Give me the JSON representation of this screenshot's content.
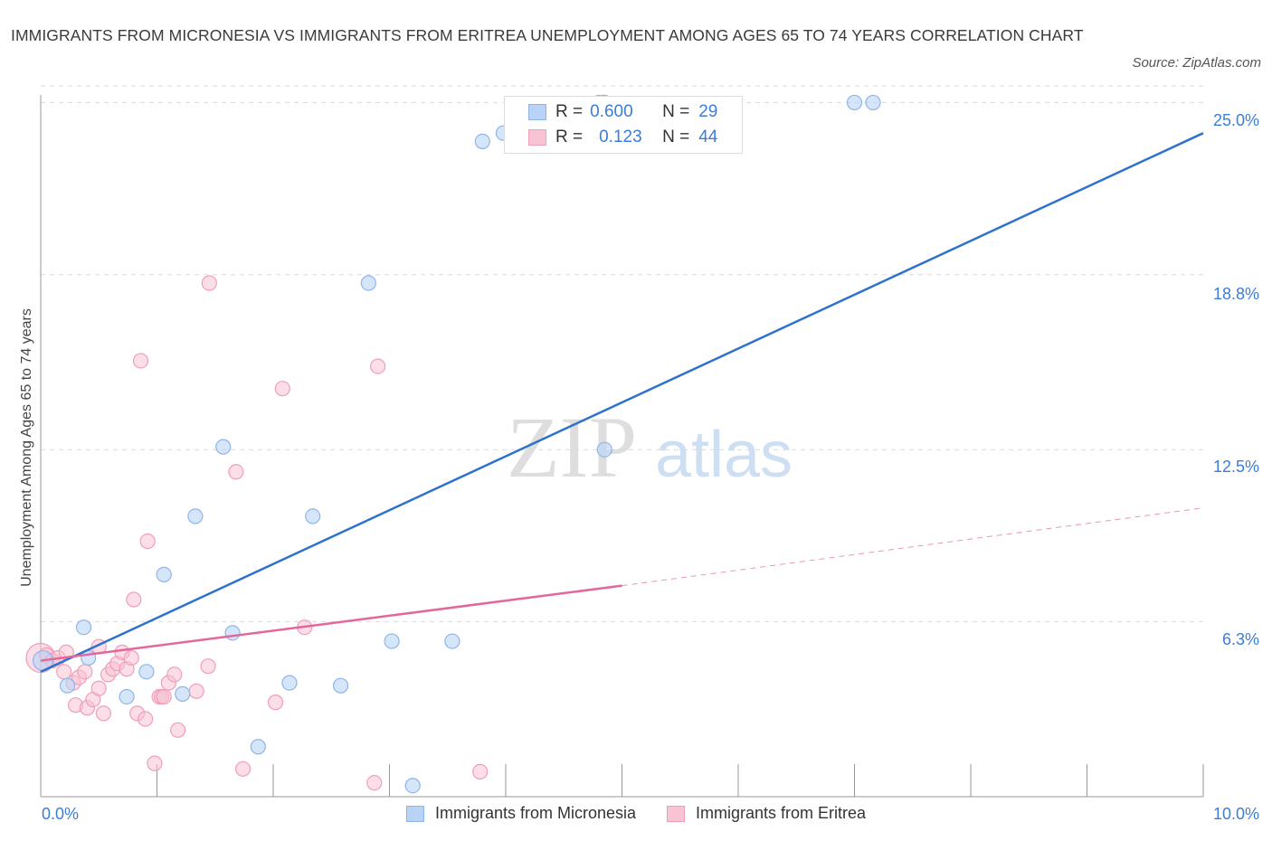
{
  "title": "IMMIGRANTS FROM MICRONESIA VS IMMIGRANTS FROM ERITREA UNEMPLOYMENT AMONG AGES 65 TO 74 YEARS CORRELATION CHART",
  "source": "Source: ZipAtlas.com",
  "watermark": {
    "zip": "ZIP",
    "atlas": "atlas"
  },
  "legend_top": [
    {
      "r_label": "R =",
      "r_value": "0.600",
      "n_label": "N =",
      "n_value": "29"
    },
    {
      "r_label": "R =",
      "r_value": "0.123",
      "n_label": "N =",
      "n_value": "44"
    }
  ],
  "legend_bottom": [
    "Immigrants from Micronesia",
    "Immigrants from Eritrea"
  ],
  "x_tick_labels": {
    "min": "0.0%",
    "max": "10.0%"
  },
  "y_tick_labels": [
    "6.3%",
    "12.5%",
    "18.8%",
    "25.0%"
  ],
  "colors": {
    "micronesia_fill": "#b9d3f6",
    "micronesia_stroke": "#8fb5e8",
    "micronesia_line": "#2f72cc",
    "eritrea_fill": "#f8c3d3",
    "eritrea_stroke": "#ef9fb8",
    "eritrea_line": "#e3679a",
    "tick_text": "#3b7dd8",
    "grid": "#d9d9d9"
  },
  "chart_data": {
    "type": "scatter",
    "title": "IMMIGRANTS FROM MICRONESIA VS IMMIGRANTS FROM ERITREA UNEMPLOYMENT AMONG AGES 65 TO 74 YEARS CORRELATION CHART",
    "xlabel": "",
    "ylabel": "Unemployment Among Ages 65 to 74 years",
    "xlim": [
      0,
      10
    ],
    "ylim": [
      0,
      25.6
    ],
    "x_ticks": [
      0,
      10
    ],
    "y_ticks": [
      6.3,
      12.5,
      18.8,
      25.0
    ],
    "grid": true,
    "legend_position": "bottom",
    "series": [
      {
        "name": "Immigrants from Micronesia",
        "r": 0.6,
        "n": 29,
        "trend": {
          "x": [
            0,
            10
          ],
          "y": [
            4.5,
            23.9
          ],
          "dashed_beyond": null
        },
        "points": [
          {
            "x": 0.02,
            "y": 4.9
          },
          {
            "x": 0.23,
            "y": 4.0
          },
          {
            "x": 0.37,
            "y": 6.1
          },
          {
            "x": 0.41,
            "y": 5.0
          },
          {
            "x": 0.74,
            "y": 3.6
          },
          {
            "x": 0.91,
            "y": 4.5
          },
          {
            "x": 1.06,
            "y": 8.0
          },
          {
            "x": 1.22,
            "y": 3.7
          },
          {
            "x": 1.33,
            "y": 10.1
          },
          {
            "x": 1.57,
            "y": 12.6
          },
          {
            "x": 1.65,
            "y": 5.9
          },
          {
            "x": 1.87,
            "y": 1.8
          },
          {
            "x": 2.14,
            "y": 4.1
          },
          {
            "x": 2.34,
            "y": 10.1
          },
          {
            "x": 2.58,
            "y": 4.0
          },
          {
            "x": 2.82,
            "y": 18.5
          },
          {
            "x": 3.02,
            "y": 5.6
          },
          {
            "x": 3.2,
            "y": 0.4
          },
          {
            "x": 3.54,
            "y": 5.6
          },
          {
            "x": 3.8,
            "y": 23.6
          },
          {
            "x": 3.98,
            "y": 23.9
          },
          {
            "x": 4.85,
            "y": 12.5
          },
          {
            "x": 4.84,
            "y": 25.0
          },
          {
            "x": 4.85,
            "y": 25.0
          },
          {
            "x": 4.8,
            "y": 25.0
          },
          {
            "x": 4.84,
            "y": 25.0
          },
          {
            "x": 4.85,
            "y": 25.0
          },
          {
            "x": 7.0,
            "y": 25.0
          },
          {
            "x": 7.16,
            "y": 25.0
          }
        ]
      },
      {
        "name": "Immigrants from Eritrea",
        "r": 0.123,
        "n": 44,
        "trend": {
          "x": [
            0,
            5.0
          ],
          "y": [
            4.9,
            7.6
          ],
          "dashed_to": [
            10,
            10.4
          ]
        },
        "points": [
          {
            "x": 0.0,
            "y": 5.0
          },
          {
            "x": 0.05,
            "y": 5.1
          },
          {
            "x": 0.1,
            "y": 4.9
          },
          {
            "x": 0.15,
            "y": 5.0
          },
          {
            "x": 0.2,
            "y": 4.5
          },
          {
            "x": 0.22,
            "y": 5.2
          },
          {
            "x": 0.28,
            "y": 4.1
          },
          {
            "x": 0.3,
            "y": 3.3
          },
          {
            "x": 0.33,
            "y": 4.3
          },
          {
            "x": 0.38,
            "y": 4.5
          },
          {
            "x": 0.4,
            "y": 3.2
          },
          {
            "x": 0.45,
            "y": 3.5
          },
          {
            "x": 0.5,
            "y": 3.9
          },
          {
            "x": 0.5,
            "y": 5.4
          },
          {
            "x": 0.54,
            "y": 3.0
          },
          {
            "x": 0.58,
            "y": 4.4
          },
          {
            "x": 0.62,
            "y": 4.6
          },
          {
            "x": 0.66,
            "y": 4.8
          },
          {
            "x": 0.7,
            "y": 5.2
          },
          {
            "x": 0.74,
            "y": 4.6
          },
          {
            "x": 0.78,
            "y": 5.0
          },
          {
            "x": 0.8,
            "y": 7.1
          },
          {
            "x": 0.83,
            "y": 3.0
          },
          {
            "x": 0.86,
            "y": 15.7
          },
          {
            "x": 0.9,
            "y": 2.8
          },
          {
            "x": 0.92,
            "y": 9.2
          },
          {
            "x": 0.98,
            "y": 1.2
          },
          {
            "x": 1.02,
            "y": 3.6
          },
          {
            "x": 1.04,
            "y": 3.6
          },
          {
            "x": 1.06,
            "y": 3.6
          },
          {
            "x": 1.1,
            "y": 4.1
          },
          {
            "x": 1.15,
            "y": 4.4
          },
          {
            "x": 1.18,
            "y": 2.4
          },
          {
            "x": 1.44,
            "y": 4.7
          },
          {
            "x": 1.45,
            "y": 18.5
          },
          {
            "x": 1.68,
            "y": 11.7
          },
          {
            "x": 1.74,
            "y": 1.0
          },
          {
            "x": 2.02,
            "y": 3.4
          },
          {
            "x": 2.08,
            "y": 14.7
          },
          {
            "x": 2.27,
            "y": 6.1
          },
          {
            "x": 2.87,
            "y": 0.5
          },
          {
            "x": 2.9,
            "y": 15.5
          },
          {
            "x": 3.78,
            "y": 0.9
          },
          {
            "x": 1.34,
            "y": 3.8
          }
        ]
      }
    ]
  }
}
